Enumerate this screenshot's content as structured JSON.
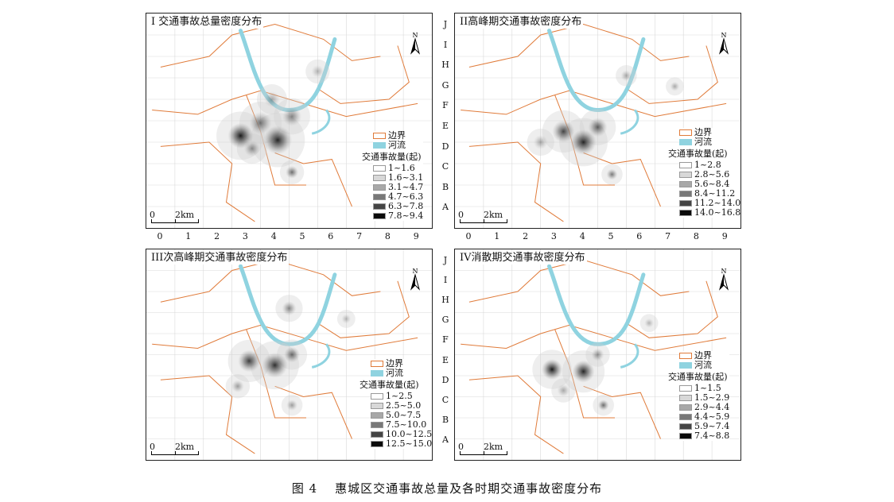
{
  "panels": [
    {
      "title": "I 交通事故总量密度分布",
      "legend_items": [
        "1~1.6",
        "1.6~3.1",
        "3.1~4.7",
        "4.7~6.3",
        "6.3~7.8",
        "7.8~9.4"
      ]
    },
    {
      "title": "II高峰期交通事故密度分布",
      "legend_items": [
        "1~2.8",
        "2.8~5.6",
        "5.6~8.4",
        "8.4~11.2",
        "11.2~14.0",
        "14.0~16.8"
      ]
    },
    {
      "title": "III次高峰期交通事故密度分布",
      "legend_items": [
        "1~2.5",
        "2.5~5.0",
        "5.0~7.5",
        "7.5~10.0",
        "10.0~12.5",
        "12.5~15.0"
      ]
    },
    {
      "title": "IV消散期交通事故密度分布",
      "legend_items": [
        "1~1.5",
        "1.5~2.9",
        "2.9~4.4",
        "4.4~5.9",
        "5.9~7.4",
        "7.4~8.8"
      ]
    }
  ],
  "legend": {
    "boundary_label": "边界",
    "river_label": "河流",
    "heading": "交通事故量(起)",
    "ramp_colors": [
      "#ffffff",
      "#d8d8d8",
      "#a8a8a8",
      "#787878",
      "#444444",
      "#0a0a0a"
    ],
    "boundary_color": "#e07b3a",
    "river_color": "#8fd3e0"
  },
  "scale_bar": {
    "zero": "0",
    "distance": "2km"
  },
  "north_arrow": "N",
  "row_labels": [
    "J",
    "I",
    "H",
    "G",
    "F",
    "E",
    "D",
    "C",
    "B",
    "A"
  ],
  "col_labels": [
    "0",
    "1",
    "2",
    "3",
    "4",
    "5",
    "6",
    "7",
    "8",
    "9"
  ],
  "caption": {
    "figure": "图 4",
    "text": "惠城区交通事故总量及各时期交通事故密度分布"
  }
}
